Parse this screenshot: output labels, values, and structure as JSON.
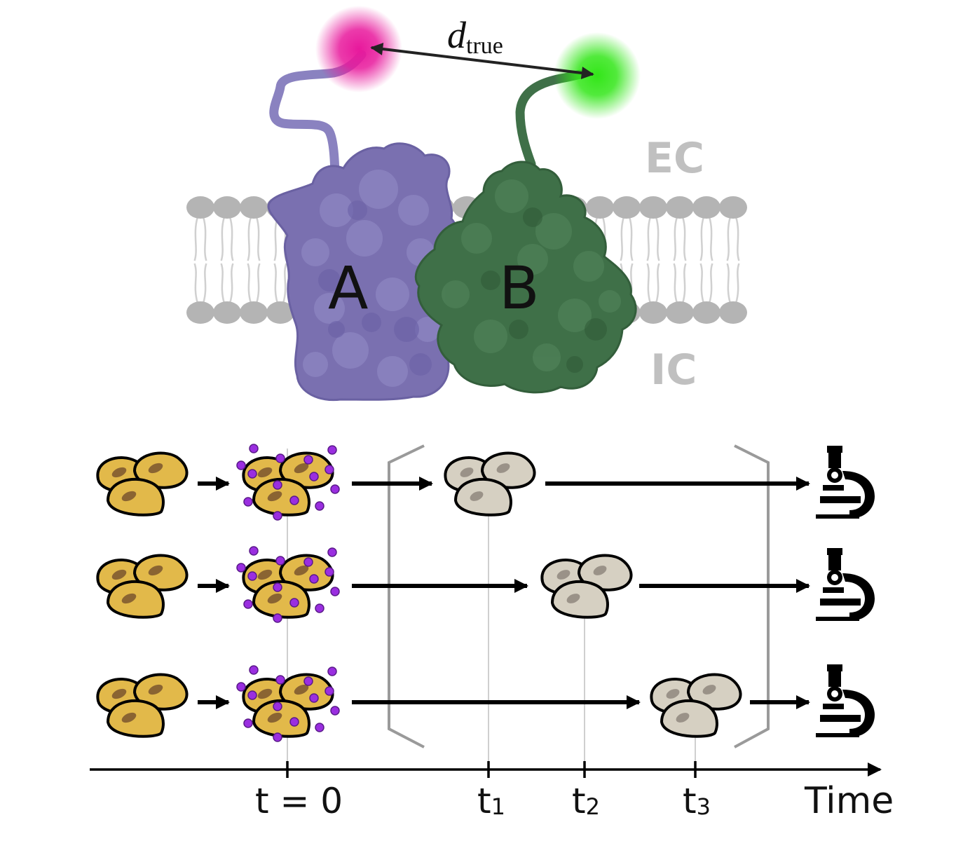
{
  "top_figure": {
    "distance_label": {
      "main": "d",
      "subscript": "true"
    },
    "region_extracellular": "EC",
    "region_intracellular": "IC",
    "protein_a_label": "A",
    "protein_b_label": "B",
    "colors": {
      "protein_a": "#7a70b0",
      "protein_b": "#3f7048",
      "fluorophore_a": "#e8189c",
      "fluorophore_b": "#33e619",
      "linker_a": "#8a82c0",
      "linker_b": "#3f7048",
      "membrane": "#b4b4b4",
      "region_text": "#c0c0c0"
    }
  },
  "timeline": {
    "axis_label": "Time",
    "ticks": [
      {
        "main": "t = 0",
        "sub": ""
      },
      {
        "main": "t",
        "sub": "1"
      },
      {
        "main": "t",
        "sub": "2"
      },
      {
        "main": "t",
        "sub": "3"
      }
    ],
    "rows": [
      {
        "fixation_tick": "t1"
      },
      {
        "fixation_tick": "t2"
      },
      {
        "fixation_tick": "t3"
      }
    ],
    "colors": {
      "live_cells": "#e2b94a",
      "fixed_cells": "#d6d0c2",
      "nucleus_live": "#8a6432",
      "nucleus_fixed": "#9a9288",
      "ligand_dots": "#9a2ee0",
      "arrows": "#000000",
      "bracket": "#9a9a9a",
      "guide_lines": "#cfcfcf"
    },
    "icons": [
      "cell-cluster-icon",
      "ligand-dot-icon",
      "microscope-icon"
    ]
  }
}
